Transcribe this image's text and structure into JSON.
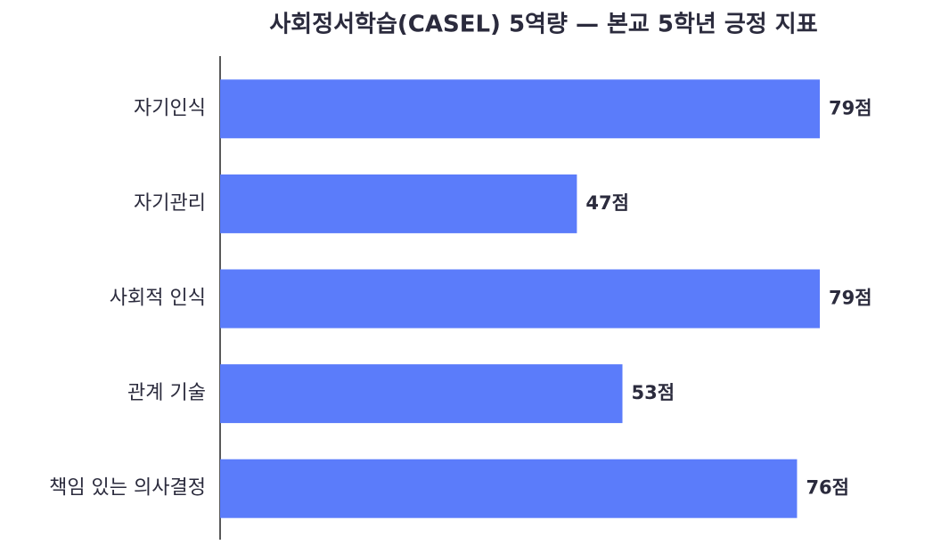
{
  "chart_data": {
    "type": "barh",
    "title": "사회정서학습(CASEL) 5역량 — 본교 5학년 긍정 지표",
    "categories": [
      "자기인식",
      "자기관리",
      "사회적 인식",
      "관계 기술",
      "책임 있는 의사결정"
    ],
    "values": [
      79,
      47,
      79,
      53,
      76
    ],
    "value_labels": [
      "79점",
      "47점",
      "79점",
      "53점",
      "76점"
    ],
    "color": "#5b7cfa",
    "xlim": [
      0,
      90
    ]
  }
}
